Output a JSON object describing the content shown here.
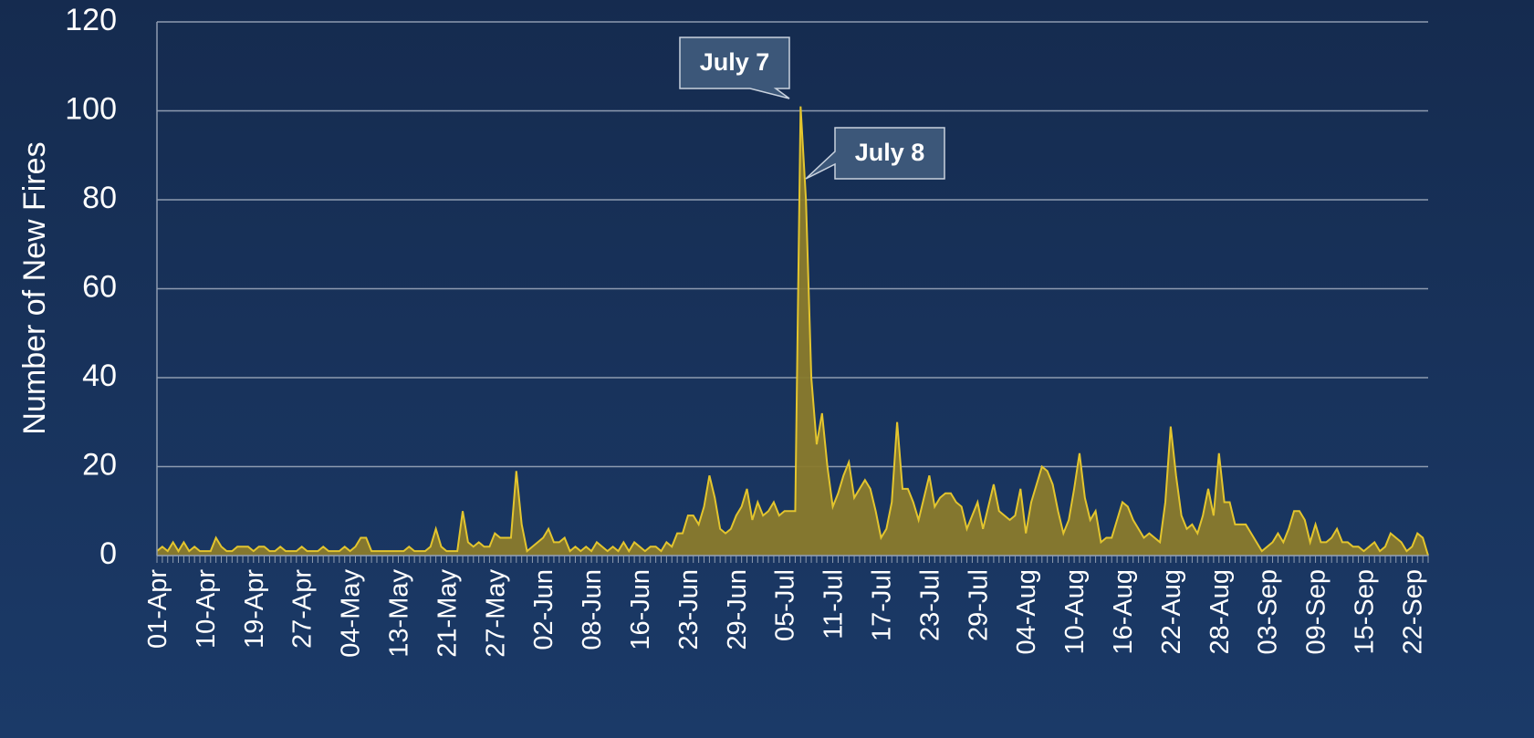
{
  "chart_data": {
    "type": "area",
    "y_label": "Number of New Fires",
    "ylim": [
      0,
      120
    ],
    "yticks": [
      0,
      20,
      40,
      60,
      80,
      100,
      120
    ],
    "grid": true,
    "color": "#8a7b2c",
    "line_color": "#e3c52e",
    "annotations": [
      {
        "text": "July 7"
      },
      {
        "text": "July 8"
      }
    ],
    "categories": [
      "01-Apr",
      null,
      null,
      null,
      null,
      null,
      null,
      null,
      null,
      "10-Apr",
      null,
      null,
      null,
      null,
      null,
      null,
      null,
      null,
      "19-Apr",
      null,
      null,
      null,
      null,
      null,
      null,
      null,
      null,
      "27-Apr",
      null,
      null,
      null,
      null,
      null,
      null,
      null,
      null,
      "04-May",
      null,
      null,
      null,
      null,
      null,
      null,
      null,
      null,
      "13-May",
      null,
      null,
      null,
      null,
      null,
      null,
      null,
      null,
      "21-May",
      null,
      null,
      null,
      null,
      null,
      null,
      null,
      null,
      "27-May",
      null,
      null,
      null,
      null,
      null,
      null,
      null,
      null,
      "02-Jun",
      null,
      null,
      null,
      null,
      null,
      null,
      null,
      null,
      "08-Jun",
      null,
      null,
      null,
      null,
      null,
      null,
      null,
      null,
      "16-Jun",
      null,
      null,
      null,
      null,
      null,
      null,
      null,
      null,
      "23-Jun",
      null,
      null,
      null,
      null,
      null,
      null,
      null,
      null,
      "29-Jun",
      null,
      null,
      null,
      null,
      null,
      null,
      null,
      null,
      "05-Jul",
      null,
      null,
      null,
      null,
      null,
      null,
      null,
      null,
      "11-Jul",
      null,
      null,
      null,
      null,
      null,
      null,
      null,
      null,
      "17-Jul",
      null,
      null,
      null,
      null,
      null,
      null,
      null,
      null,
      "23-Jul",
      null,
      null,
      null,
      null,
      null,
      null,
      null,
      null,
      "29-Jul",
      null,
      null,
      null,
      null,
      null,
      null,
      null,
      null,
      "04-Aug",
      null,
      null,
      null,
      null,
      null,
      null,
      null,
      null,
      "10-Aug",
      null,
      null,
      null,
      null,
      null,
      null,
      null,
      null,
      "16-Aug",
      null,
      null,
      null,
      null,
      null,
      null,
      null,
      null,
      "22-Aug",
      null,
      null,
      null,
      null,
      null,
      null,
      null,
      null,
      "28-Aug",
      null,
      null,
      null,
      null,
      null,
      null,
      null,
      null,
      "03-Sep",
      null,
      null,
      null,
      null,
      null,
      null,
      null,
      null,
      "09-Sep",
      null,
      null,
      null,
      null,
      null,
      null,
      null,
      null,
      "15-Sep",
      null,
      null,
      null,
      null,
      null,
      null,
      null,
      null,
      "22-Sep",
      null,
      null,
      null
    ],
    "values": [
      1,
      2,
      1,
      3,
      1,
      3,
      1,
      2,
      1,
      1,
      1,
      4,
      2,
      1,
      1,
      2,
      2,
      2,
      1,
      2,
      2,
      1,
      1,
      2,
      1,
      1,
      1,
      2,
      1,
      1,
      1,
      2,
      1,
      1,
      1,
      2,
      1,
      2,
      4,
      4,
      1,
      1,
      1,
      1,
      1,
      1,
      1,
      2,
      1,
      1,
      1,
      2,
      6,
      2,
      1,
      1,
      1,
      10,
      3,
      2,
      3,
      2,
      2,
      5,
      4,
      4,
      4,
      19,
      7,
      1,
      2,
      3,
      4,
      6,
      3,
      3,
      4,
      1,
      2,
      1,
      2,
      1,
      3,
      2,
      1,
      2,
      1,
      3,
      1,
      3,
      2,
      1,
      2,
      2,
      1,
      3,
      2,
      5,
      5,
      9,
      9,
      7,
      11,
      18,
      13,
      6,
      5,
      6,
      9,
      11,
      15,
      8,
      12,
      9,
      10,
      12,
      9,
      10,
      10,
      10,
      101,
      80,
      40,
      25,
      32,
      20,
      11,
      14,
      18,
      21,
      13,
      15,
      17,
      15,
      10,
      4,
      6,
      12,
      30,
      15,
      15,
      12,
      8,
      13,
      18,
      11,
      13,
      14,
      14,
      12,
      11,
      6,
      9,
      12,
      6,
      11,
      16,
      10,
      9,
      8,
      9,
      15,
      5,
      12,
      16,
      20,
      19,
      16,
      10,
      5,
      8,
      15,
      23,
      13,
      8,
      10,
      3,
      4,
      4,
      8,
      12,
      11,
      8,
      6,
      4,
      5,
      4,
      3,
      12,
      29,
      18,
      9,
      6,
      7,
      5,
      9,
      15,
      9,
      23,
      12,
      12,
      7,
      7,
      7,
      5,
      3,
      1,
      2,
      3,
      5,
      3,
      6,
      10,
      10,
      8,
      3,
      7,
      3,
      3,
      4,
      6,
      3,
      3,
      2,
      2,
      1,
      2,
      3,
      1,
      2,
      5,
      4,
      3,
      1,
      2,
      5,
      4,
      0
    ]
  }
}
